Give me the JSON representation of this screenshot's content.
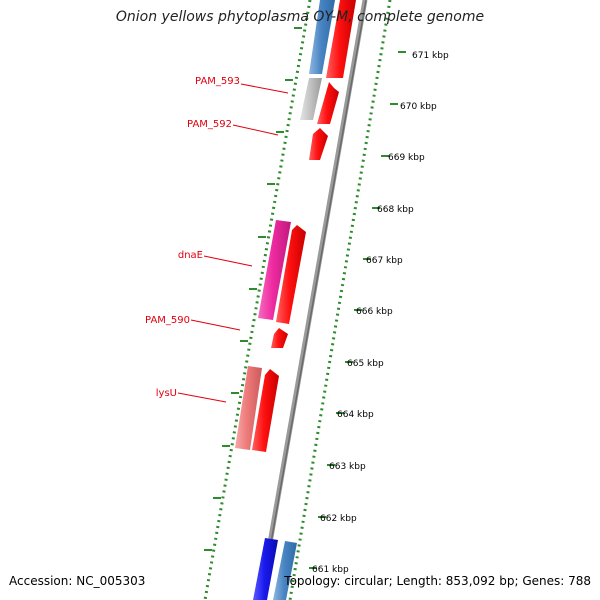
{
  "title": "Onion yellows phytoplasma OY-M, complete genome",
  "accession": "Accession: NC_005303",
  "topology": "Topology: circular; Length: 853,092 bp; Genes: 788",
  "colors": {
    "label": "#e0000f",
    "ticks": "#2e8b2e",
    "backbone": "#808080",
    "gene_red": "#ff1a1a",
    "gene_magenta": "#ee2aa0",
    "gene_pink": "#ee7a7a",
    "gene_grey": "#bdbdbd",
    "gene_steelblue": "#4a86c4",
    "gene_blue": "#1a1aee"
  },
  "scale_labels": [
    "671 kbp",
    "670 kbp",
    "669 kbp",
    "668 kbp",
    "667 kbp",
    "666 kbp",
    "665 kbp",
    "664 kbp",
    "663 kbp",
    "662 kbp",
    "661 kbp"
  ],
  "gene_labels": [
    "PAM_593",
    "PAM_592",
    "dnaE",
    "PAM_590",
    "lysU"
  ]
}
